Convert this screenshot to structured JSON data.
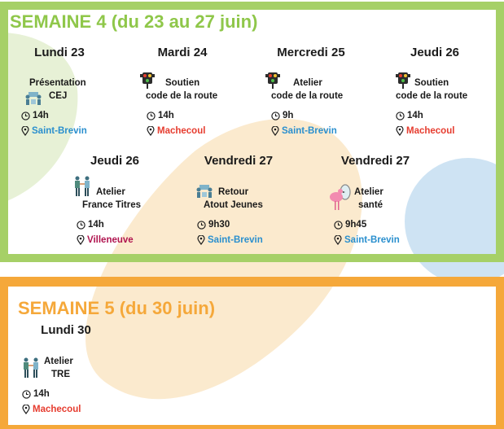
{
  "colors": {
    "green": "#8fc74a",
    "orange": "#f5a83a",
    "blue": "#2a8fce",
    "red": "#e63c2f",
    "purple": "#b0144f"
  },
  "week4": {
    "title": "SEMAINE 4 (du 23 au 27 juin)",
    "days": [
      {
        "label": "Lundi 23",
        "event_line1": "Présentation",
        "event_line2": "CEJ",
        "icon": "people-meeting-icon",
        "time": "14h",
        "location": "Saint-Brevin",
        "loc_color": "blue"
      },
      {
        "label": "Mardi 24",
        "event_line1": "Soutien",
        "event_line2": "code de la route",
        "icon": "traffic-light-icon",
        "time": "14h",
        "location": "Machecoul",
        "loc_color": "red"
      },
      {
        "label": "Mercredi 25",
        "event_line1": "Atelier",
        "event_line2": "code de la route",
        "icon": "traffic-light-icon",
        "time": "9h",
        "location": "Saint-Brevin",
        "loc_color": "blue"
      },
      {
        "label": "Jeudi 26",
        "event_line1": "Soutien",
        "event_line2": "code de la route",
        "icon": "traffic-light-icon",
        "time": "14h",
        "location": "Machecoul",
        "loc_color": "red"
      },
      {
        "label": "Jeudi 26",
        "event_line1": "Atelier",
        "event_line2": "France Titres",
        "icon": "handshake-icon",
        "time": "14h",
        "location": "Villeneuve",
        "loc_color": "purple"
      },
      {
        "label": "Vendredi 27",
        "event_line1": "Retour",
        "event_line2": "Atout Jeunes",
        "icon": "people-meeting-icon",
        "time": "9h30",
        "location": "Saint-Brevin",
        "loc_color": "blue"
      },
      {
        "label": "Vendredi 27",
        "event_line1": "Atelier",
        "event_line2": "santé",
        "icon": "flamingo-mirror-icon",
        "time": "9h45",
        "location": "Saint-Brevin",
        "loc_color": "blue"
      }
    ]
  },
  "week5": {
    "title": "SEMAINE 5 (du 30 juin)",
    "days": [
      {
        "label": "Lundi 30",
        "event_line1": "Atelier",
        "event_line2": "TRE",
        "icon": "handshake-icon",
        "time": "14h",
        "location": "Machecoul",
        "loc_color": "red"
      }
    ]
  }
}
